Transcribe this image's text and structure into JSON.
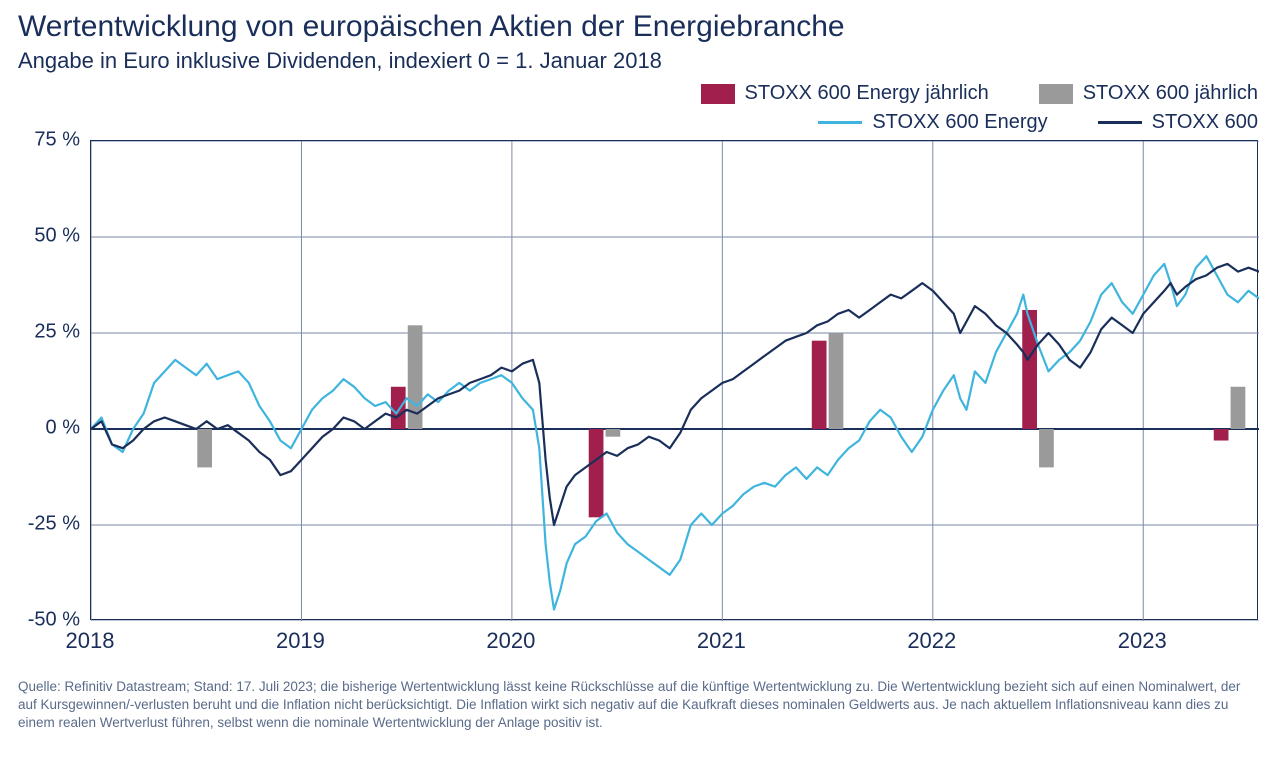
{
  "title": "Wertentwicklung von europäischen Aktien der Energiebranche",
  "subtitle": "Angabe in Euro inklusive Dividenden, indexiert 0 = 1. Januar 2018",
  "legend": {
    "row1": [
      {
        "label": "STOXX 600 Energy jährlich",
        "type": "bar",
        "color": "#a01f4c"
      },
      {
        "label": "STOXX 600 jährlich",
        "type": "bar",
        "color": "#9a9a9a"
      }
    ],
    "row2": [
      {
        "label": "STOXX 600 Energy",
        "type": "line",
        "color": "#3fb5de"
      },
      {
        "label": "STOXX 600",
        "type": "line",
        "color": "#1a2e5a"
      }
    ]
  },
  "chart": {
    "type": "combo-bar-line",
    "background_color": "#ffffff",
    "grid_color": "#7a8aa8",
    "zero_line_color": "#1a2e5a",
    "border_color": "#1a2e5a",
    "line_width": 2,
    "ylim": [
      -50,
      75
    ],
    "ytick_step": 25,
    "yticks": [
      -50,
      -25,
      0,
      25,
      50,
      75
    ],
    "ytick_labels": [
      "-50 %",
      "-25 %",
      "0 %",
      "25 %",
      "50 %",
      "75 %"
    ],
    "x_range_years": [
      2018,
      2023.55
    ],
    "xticks": [
      2018,
      2019,
      2020,
      2021,
      2022,
      2023
    ],
    "xtick_labels": [
      "2018",
      "2019",
      "2020",
      "2021",
      "2022",
      "2023"
    ],
    "bar_width_years": 0.07,
    "bars_energy": {
      "color": "#a01f4c",
      "points": [
        {
          "x": 2019.46,
          "y": 11
        },
        {
          "x": 2020.4,
          "y": -23
        },
        {
          "x": 2021.46,
          "y": 23
        },
        {
          "x": 2022.46,
          "y": 31
        },
        {
          "x": 2023.37,
          "y": -3
        }
      ]
    },
    "bars_600": {
      "color": "#9a9a9a",
      "points": [
        {
          "x": 2018.54,
          "y": -10
        },
        {
          "x": 2019.54,
          "y": 27
        },
        {
          "x": 2020.48,
          "y": -2
        },
        {
          "x": 2021.54,
          "y": 25
        },
        {
          "x": 2022.54,
          "y": -10
        },
        {
          "x": 2023.45,
          "y": 11
        }
      ]
    },
    "line_energy": {
      "color": "#3fb5de",
      "width": 2.2,
      "points": [
        [
          2018.0,
          0
        ],
        [
          2018.05,
          3
        ],
        [
          2018.1,
          -4
        ],
        [
          2018.15,
          -6
        ],
        [
          2018.2,
          0
        ],
        [
          2018.25,
          4
        ],
        [
          2018.3,
          12
        ],
        [
          2018.35,
          15
        ],
        [
          2018.4,
          18
        ],
        [
          2018.45,
          16
        ],
        [
          2018.5,
          14
        ],
        [
          2018.55,
          17
        ],
        [
          2018.6,
          13
        ],
        [
          2018.65,
          14
        ],
        [
          2018.7,
          15
        ],
        [
          2018.75,
          12
        ],
        [
          2018.8,
          6
        ],
        [
          2018.85,
          2
        ],
        [
          2018.9,
          -3
        ],
        [
          2018.95,
          -5
        ],
        [
          2019.0,
          0
        ],
        [
          2019.05,
          5
        ],
        [
          2019.1,
          8
        ],
        [
          2019.15,
          10
        ],
        [
          2019.2,
          13
        ],
        [
          2019.25,
          11
        ],
        [
          2019.3,
          8
        ],
        [
          2019.35,
          6
        ],
        [
          2019.4,
          7
        ],
        [
          2019.45,
          4
        ],
        [
          2019.5,
          8
        ],
        [
          2019.55,
          6
        ],
        [
          2019.6,
          9
        ],
        [
          2019.65,
          7
        ],
        [
          2019.7,
          10
        ],
        [
          2019.75,
          12
        ],
        [
          2019.8,
          10
        ],
        [
          2019.85,
          12
        ],
        [
          2019.9,
          13
        ],
        [
          2019.95,
          14
        ],
        [
          2020.0,
          12
        ],
        [
          2020.05,
          8
        ],
        [
          2020.1,
          5
        ],
        [
          2020.13,
          -5
        ],
        [
          2020.16,
          -30
        ],
        [
          2020.18,
          -40
        ],
        [
          2020.2,
          -47
        ],
        [
          2020.23,
          -42
        ],
        [
          2020.26,
          -35
        ],
        [
          2020.3,
          -30
        ],
        [
          2020.35,
          -28
        ],
        [
          2020.4,
          -24
        ],
        [
          2020.45,
          -22
        ],
        [
          2020.5,
          -27
        ],
        [
          2020.55,
          -30
        ],
        [
          2020.6,
          -32
        ],
        [
          2020.65,
          -34
        ],
        [
          2020.7,
          -36
        ],
        [
          2020.75,
          -38
        ],
        [
          2020.8,
          -34
        ],
        [
          2020.85,
          -25
        ],
        [
          2020.9,
          -22
        ],
        [
          2020.95,
          -25
        ],
        [
          2021.0,
          -22
        ],
        [
          2021.05,
          -20
        ],
        [
          2021.1,
          -17
        ],
        [
          2021.15,
          -15
        ],
        [
          2021.2,
          -14
        ],
        [
          2021.25,
          -15
        ],
        [
          2021.3,
          -12
        ],
        [
          2021.35,
          -10
        ],
        [
          2021.4,
          -13
        ],
        [
          2021.45,
          -10
        ],
        [
          2021.5,
          -12
        ],
        [
          2021.55,
          -8
        ],
        [
          2021.6,
          -5
        ],
        [
          2021.65,
          -3
        ],
        [
          2021.7,
          2
        ],
        [
          2021.75,
          5
        ],
        [
          2021.8,
          3
        ],
        [
          2021.85,
          -2
        ],
        [
          2021.9,
          -6
        ],
        [
          2021.95,
          -2
        ],
        [
          2022.0,
          5
        ],
        [
          2022.05,
          10
        ],
        [
          2022.1,
          14
        ],
        [
          2022.13,
          8
        ],
        [
          2022.16,
          5
        ],
        [
          2022.2,
          15
        ],
        [
          2022.25,
          12
        ],
        [
          2022.3,
          20
        ],
        [
          2022.35,
          25
        ],
        [
          2022.4,
          30
        ],
        [
          2022.43,
          35
        ],
        [
          2022.45,
          30
        ],
        [
          2022.5,
          22
        ],
        [
          2022.55,
          15
        ],
        [
          2022.6,
          18
        ],
        [
          2022.65,
          20
        ],
        [
          2022.7,
          23
        ],
        [
          2022.75,
          28
        ],
        [
          2022.8,
          35
        ],
        [
          2022.85,
          38
        ],
        [
          2022.9,
          33
        ],
        [
          2022.95,
          30
        ],
        [
          2023.0,
          35
        ],
        [
          2023.05,
          40
        ],
        [
          2023.1,
          43
        ],
        [
          2023.13,
          38
        ],
        [
          2023.16,
          32
        ],
        [
          2023.2,
          35
        ],
        [
          2023.25,
          42
        ],
        [
          2023.3,
          45
        ],
        [
          2023.35,
          40
        ],
        [
          2023.4,
          35
        ],
        [
          2023.45,
          33
        ],
        [
          2023.5,
          36
        ],
        [
          2023.55,
          34
        ]
      ]
    },
    "line_600": {
      "color": "#1a2e5a",
      "width": 2.2,
      "points": [
        [
          2018.0,
          0
        ],
        [
          2018.05,
          2
        ],
        [
          2018.1,
          -4
        ],
        [
          2018.15,
          -5
        ],
        [
          2018.2,
          -3
        ],
        [
          2018.25,
          0
        ],
        [
          2018.3,
          2
        ],
        [
          2018.35,
          3
        ],
        [
          2018.4,
          2
        ],
        [
          2018.45,
          1
        ],
        [
          2018.5,
          0
        ],
        [
          2018.55,
          2
        ],
        [
          2018.6,
          0
        ],
        [
          2018.65,
          1
        ],
        [
          2018.7,
          -1
        ],
        [
          2018.75,
          -3
        ],
        [
          2018.8,
          -6
        ],
        [
          2018.85,
          -8
        ],
        [
          2018.9,
          -12
        ],
        [
          2018.95,
          -11
        ],
        [
          2019.0,
          -8
        ],
        [
          2019.05,
          -5
        ],
        [
          2019.1,
          -2
        ],
        [
          2019.15,
          0
        ],
        [
          2019.2,
          3
        ],
        [
          2019.25,
          2
        ],
        [
          2019.3,
          0
        ],
        [
          2019.35,
          2
        ],
        [
          2019.4,
          4
        ],
        [
          2019.45,
          3
        ],
        [
          2019.5,
          5
        ],
        [
          2019.55,
          4
        ],
        [
          2019.6,
          6
        ],
        [
          2019.65,
          8
        ],
        [
          2019.7,
          9
        ],
        [
          2019.75,
          10
        ],
        [
          2019.8,
          12
        ],
        [
          2019.85,
          13
        ],
        [
          2019.9,
          14
        ],
        [
          2019.95,
          16
        ],
        [
          2020.0,
          15
        ],
        [
          2020.05,
          17
        ],
        [
          2020.1,
          18
        ],
        [
          2020.13,
          12
        ],
        [
          2020.16,
          -8
        ],
        [
          2020.18,
          -18
        ],
        [
          2020.2,
          -25
        ],
        [
          2020.23,
          -20
        ],
        [
          2020.26,
          -15
        ],
        [
          2020.3,
          -12
        ],
        [
          2020.35,
          -10
        ],
        [
          2020.4,
          -8
        ],
        [
          2020.45,
          -6
        ],
        [
          2020.5,
          -7
        ],
        [
          2020.55,
          -5
        ],
        [
          2020.6,
          -4
        ],
        [
          2020.65,
          -2
        ],
        [
          2020.7,
          -3
        ],
        [
          2020.75,
          -5
        ],
        [
          2020.8,
          -1
        ],
        [
          2020.85,
          5
        ],
        [
          2020.9,
          8
        ],
        [
          2020.95,
          10
        ],
        [
          2021.0,
          12
        ],
        [
          2021.05,
          13
        ],
        [
          2021.1,
          15
        ],
        [
          2021.15,
          17
        ],
        [
          2021.2,
          19
        ],
        [
          2021.25,
          21
        ],
        [
          2021.3,
          23
        ],
        [
          2021.35,
          24
        ],
        [
          2021.4,
          25
        ],
        [
          2021.45,
          27
        ],
        [
          2021.5,
          28
        ],
        [
          2021.55,
          30
        ],
        [
          2021.6,
          31
        ],
        [
          2021.65,
          29
        ],
        [
          2021.7,
          31
        ],
        [
          2021.75,
          33
        ],
        [
          2021.8,
          35
        ],
        [
          2021.85,
          34
        ],
        [
          2021.9,
          36
        ],
        [
          2021.95,
          38
        ],
        [
          2022.0,
          36
        ],
        [
          2022.05,
          33
        ],
        [
          2022.1,
          30
        ],
        [
          2022.13,
          25
        ],
        [
          2022.16,
          28
        ],
        [
          2022.2,
          32
        ],
        [
          2022.25,
          30
        ],
        [
          2022.3,
          27
        ],
        [
          2022.35,
          25
        ],
        [
          2022.4,
          22
        ],
        [
          2022.43,
          20
        ],
        [
          2022.45,
          18
        ],
        [
          2022.5,
          22
        ],
        [
          2022.55,
          25
        ],
        [
          2022.6,
          22
        ],
        [
          2022.65,
          18
        ],
        [
          2022.7,
          16
        ],
        [
          2022.75,
          20
        ],
        [
          2022.8,
          26
        ],
        [
          2022.85,
          29
        ],
        [
          2022.9,
          27
        ],
        [
          2022.95,
          25
        ],
        [
          2023.0,
          30
        ],
        [
          2023.05,
          33
        ],
        [
          2023.1,
          36
        ],
        [
          2023.13,
          38
        ],
        [
          2023.16,
          35
        ],
        [
          2023.2,
          37
        ],
        [
          2023.25,
          39
        ],
        [
          2023.3,
          40
        ],
        [
          2023.35,
          42
        ],
        [
          2023.4,
          43
        ],
        [
          2023.45,
          41
        ],
        [
          2023.5,
          42
        ],
        [
          2023.55,
          41
        ]
      ]
    }
  },
  "footnote": "Quelle: Refinitiv Datastream; Stand: 17. Juli 2023; die bisherige Wertentwicklung lässt keine Rückschlüsse auf die künftige Wertentwicklung zu. Die Wertentwicklung bezieht sich auf einen Nominalwert, der auf Kursgewinnen/-verlusten beruht und die Inflation nicht berücksichtigt. Die Inflation wirkt sich negativ auf die Kaufkraft dieses nominalen Geldwerts aus. Je nach aktuellem Inflationsniveau kann dies zu einem realen Wertverlust führen, selbst wenn die nominale Wertentwicklung der Anlage positiv ist."
}
